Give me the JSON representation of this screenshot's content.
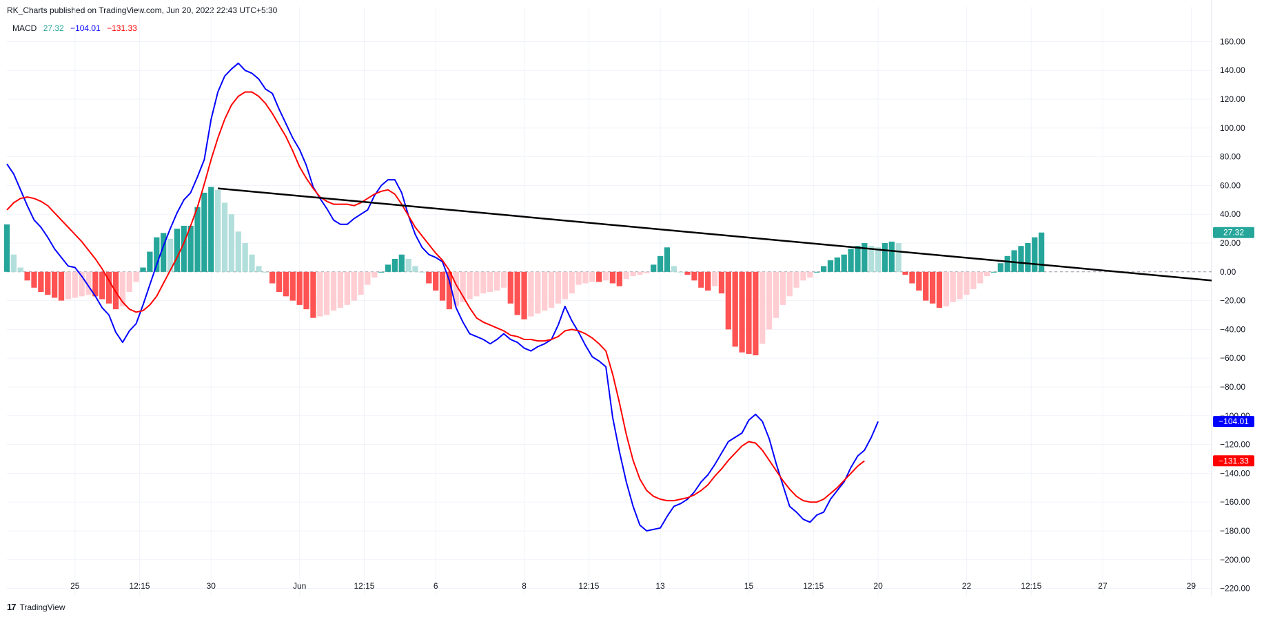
{
  "header": {
    "publisher": "RK_Charts published on TradingView.com, Jun 20, 2022 22:43 UTC+5:30"
  },
  "legend": {
    "indicator": "MACD",
    "histogram_value": "27.32",
    "macd_value": "−104.01",
    "signal_value": "−131.33"
  },
  "footer": {
    "brand": "TradingView",
    "logo_glyph": "17"
  },
  "colors": {
    "macd_line": "#0000ff",
    "signal_line": "#ff0000",
    "hist_pos_strong": "#26a69a",
    "hist_pos_weak": "#b2dfdb",
    "hist_neg_strong": "#ff5252",
    "hist_neg_weak": "#ffcdd2",
    "trendline": "#000000",
    "grid": "#f0f3fa",
    "axis_text": "#131722"
  },
  "price_labels": [
    {
      "text": "27.32",
      "value": 27.32,
      "bg": "#26a69a"
    },
    {
      "text": "−104.01",
      "value": -104.01,
      "bg": "#0000ff"
    },
    {
      "text": "−131.33",
      "value": -131.33,
      "bg": "#ff0000"
    }
  ],
  "chart_data": {
    "type": "line",
    "title": "",
    "ylim": [
      -225,
      165
    ],
    "xlim": [
      0,
      177
    ],
    "grid": true,
    "y_ticks": [
      "160.00",
      "140.00",
      "120.00",
      "100.00",
      "80.00",
      "60.00",
      "40.00",
      "20.00",
      "0.00",
      "−20.00",
      "−40.00",
      "−60.00",
      "−80.00",
      "−100.00",
      "−120.00",
      "−140.00",
      "−160.00",
      "−180.00",
      "−200.00",
      "−220.00"
    ],
    "y_tick_values": [
      160,
      140,
      120,
      100,
      80,
      60,
      40,
      20,
      0,
      -20,
      -40,
      -60,
      -80,
      -100,
      -120,
      -140,
      -160,
      -180,
      -200,
      -220
    ],
    "x_ticks": [
      {
        "label": "25",
        "bar": 10
      },
      {
        "label": "12:15",
        "bar": 19.5
      },
      {
        "label": "30",
        "bar": 30
      },
      {
        "label": "Jun",
        "bar": 43
      },
      {
        "label": "12:15",
        "bar": 52.5
      },
      {
        "label": "6",
        "bar": 63
      },
      {
        "label": "8",
        "bar": 76
      },
      {
        "label": "12:15",
        "bar": 85.5
      },
      {
        "label": "13",
        "bar": 96
      },
      {
        "label": "15",
        "bar": 109
      },
      {
        "label": "12:15",
        "bar": 118.5
      },
      {
        "label": "20",
        "bar": 128
      },
      {
        "label": "22",
        "bar": 141
      },
      {
        "label": "12:15",
        "bar": 150.5
      },
      {
        "label": "27",
        "bar": 161
      },
      {
        "label": "29",
        "bar": 174
      }
    ],
    "histogram": [
      33,
      12,
      3,
      -6,
      -11,
      -14,
      -16,
      -18,
      -20,
      -19,
      -18,
      -17,
      -16,
      -17,
      -19,
      -22,
      -26,
      -24,
      -14,
      -7,
      3,
      14,
      24,
      27,
      23,
      30,
      32,
      32,
      45,
      55,
      59,
      57,
      48,
      40,
      28,
      20,
      12,
      4,
      0,
      -8,
      -14,
      -17,
      -20,
      -23,
      -26,
      -32,
      -31,
      -30,
      -27,
      -25,
      -23,
      -20,
      -16,
      -9,
      -4,
      0,
      5,
      9,
      12,
      9,
      4,
      0,
      -8,
      -13,
      -20,
      -26,
      -24,
      -21,
      -19,
      -17,
      -15,
      -14,
      -13,
      -11,
      -22,
      -30,
      -33,
      -31,
      -29,
      -27,
      -25,
      -22,
      -19,
      -15,
      -9,
      -8,
      -7,
      -7,
      -6,
      -8,
      -10,
      -5,
      -3,
      -2,
      -1,
      5,
      11,
      17,
      4,
      0,
      -2,
      -6,
      -11,
      -13,
      -10,
      -15,
      -40,
      -52,
      -56,
      -57,
      -58,
      -50,
      -40,
      -32,
      -23,
      -17,
      -11,
      -6,
      -4,
      0,
      4,
      8,
      10,
      12,
      16,
      18,
      20,
      18,
      17,
      20,
      21,
      20,
      -2,
      -8,
      -13,
      -20,
      -22,
      -25,
      -24,
      -21,
      -19,
      -16,
      -12,
      -8,
      -3,
      0,
      6,
      11,
      15,
      18,
      20,
      24,
      27.32
    ],
    "series": [
      {
        "name": "MACD",
        "values": [
          75,
          68,
          57,
          46,
          36,
          31,
          24,
          16,
          10,
          4,
          3,
          -3,
          -10,
          -17,
          -25,
          -30,
          -42,
          -49,
          -41,
          -36,
          -23,
          -9,
          5,
          18,
          30,
          41,
          50,
          55,
          66,
          78,
          106,
          125,
          136,
          141,
          145,
          140,
          138,
          134,
          127,
          124,
          113,
          103,
          93,
          85,
          74,
          59,
          51,
          44,
          36,
          33,
          33,
          37,
          40,
          43,
          53,
          60,
          64,
          64,
          55,
          39,
          26,
          17,
          12,
          10,
          7,
          -6,
          -25,
          -35,
          -43,
          -45,
          -47,
          -50,
          -47,
          -43,
          -47,
          -49,
          -53,
          -55,
          -52,
          -50,
          -47,
          -37,
          -24,
          -34,
          -42,
          -51,
          -59,
          -62,
          -66,
          -101,
          -125,
          -146,
          -163,
          -176,
          -180,
          -179,
          -178,
          -170,
          -163,
          -161,
          -158,
          -153,
          -146,
          -141,
          -134,
          -126,
          -118,
          -115,
          -112,
          -103,
          -99,
          -104,
          -116,
          -133,
          -148,
          -163,
          -167,
          -172,
          -174,
          -169,
          -167,
          -158,
          -152,
          -146,
          -136,
          -128,
          -124,
          -115,
          -104.01
        ]
      },
      {
        "name": "Signal",
        "values": [
          43,
          48,
          51,
          52,
          51,
          49,
          46,
          41,
          36,
          31,
          26,
          21,
          15,
          9,
          2,
          -6,
          -14,
          -21,
          -26,
          -28,
          -27,
          -23,
          -17,
          -8,
          1,
          10,
          20,
          32,
          45,
          61,
          78,
          93,
          106,
          116,
          122,
          125,
          125,
          122,
          117,
          110,
          102,
          94,
          84,
          73,
          65,
          58,
          52,
          49,
          47,
          47,
          47,
          46,
          48,
          51,
          54,
          56,
          57,
          54,
          47,
          39,
          31,
          25,
          19,
          13,
          8,
          1,
          -9,
          -17,
          -25,
          -32,
          -35,
          -37,
          -39,
          -41,
          -44,
          -45,
          -47,
          -47,
          -48,
          -48,
          -47,
          -45,
          -41,
          -40,
          -41,
          -43,
          -46,
          -50,
          -55,
          -71,
          -91,
          -113,
          -131,
          -144,
          -152,
          -156,
          -158,
          -159,
          -159,
          -158,
          -157,
          -155,
          -152,
          -148,
          -142,
          -137,
          -131,
          -126,
          -121,
          -118,
          -119,
          -124,
          -131,
          -138,
          -145,
          -151,
          -156,
          -159,
          -160,
          -160,
          -158,
          -154,
          -150,
          -145,
          -140,
          -135,
          -131.33
        ]
      }
    ],
    "trendline": {
      "from": {
        "bar": 31,
        "value": 58
      },
      "to": {
        "bar": 177,
        "value": -6
      }
    }
  }
}
